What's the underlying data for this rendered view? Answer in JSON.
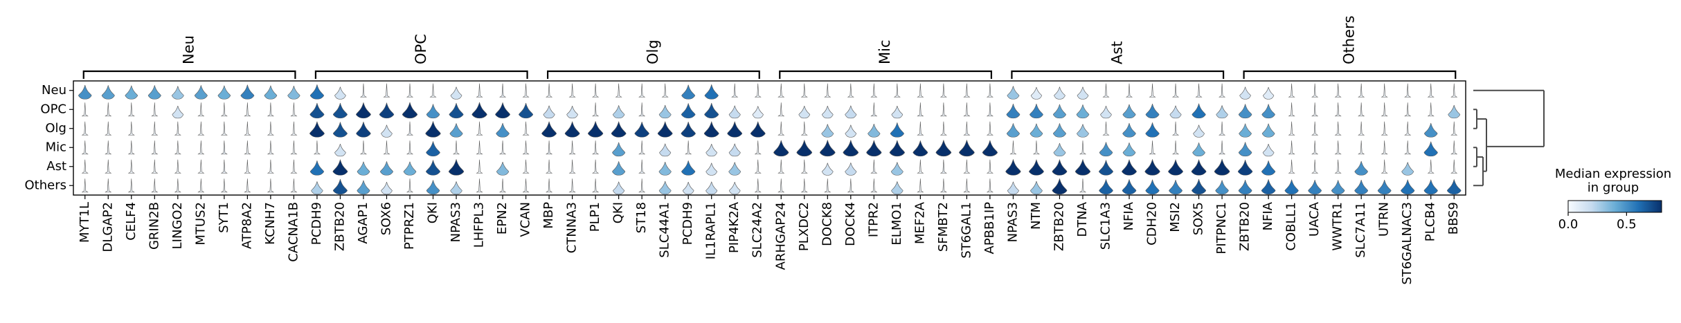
{
  "chart_data": {
    "type": "stacked-violin",
    "groups": [
      {
        "name": "Neu",
        "genes": [
          "MYT1L",
          "DLGAP2",
          "CELF4",
          "GRIN2B",
          "LINGO2",
          "MTUS2",
          "SYT1",
          "ATP8A2",
          "KCNH7",
          "CACNA1B"
        ]
      },
      {
        "name": "OPC",
        "genes": [
          "PCDH9",
          "ZBTB20",
          "AGAP1",
          "SOX6",
          "PTPRZ1",
          "QKI",
          "NPAS3",
          "LHFPL3",
          "EPN2",
          "VCAN"
        ]
      },
      {
        "name": "Olg",
        "genes": [
          "MBP",
          "CTNNA3",
          "PLP1",
          "QKI",
          "ST18",
          "SLC44A1",
          "PCDH9",
          "IL1RAPL1",
          "PIP4K2A",
          "SLC24A2"
        ]
      },
      {
        "name": "Mic",
        "genes": [
          "ARHGAP24",
          "PLXDC2",
          "DOCK8",
          "DOCK4",
          "ITPR2",
          "ELMO1",
          "MEF2A",
          "SFMBT2",
          "ST6GAL1",
          "APBB1IP"
        ]
      },
      {
        "name": "Ast",
        "genes": [
          "NPAS3",
          "NTM",
          "ZBTB20",
          "DTNA",
          "SLC1A3",
          "NFIA",
          "CDH20",
          "MSI2",
          "SOX5",
          "PITPNC1"
        ]
      },
      {
        "name": "Others",
        "genes": [
          "ZBTB20",
          "NFIA",
          "COBLL1",
          "UACA",
          "WWTR1",
          "SLC7A11",
          "UTRN",
          "ST6GALNAC3",
          "PLCB4",
          "BBS9"
        ]
      }
    ],
    "rows": [
      "Neu",
      "OPC",
      "Olg",
      "Mic",
      "Ast",
      "Others"
    ],
    "median_expression": [
      [
        0.5,
        0.45,
        0.4,
        0.45,
        0.3,
        0.45,
        0.4,
        0.55,
        0.4,
        0.35,
        0.6,
        0.15,
        0.05,
        0.05,
        0.02,
        0.02,
        0.15,
        0.05,
        0.05,
        0.02,
        0.02,
        0.02,
        0.02,
        0.02,
        0.02,
        0.02,
        0.55,
        0.6,
        0.05,
        0.02,
        0.02,
        0.02,
        0.02,
        0.02,
        0.02,
        0.02,
        0.02,
        0.02,
        0.02,
        0.02,
        0.3,
        0.1,
        0.15,
        0.15,
        0.02,
        0.05,
        0.02,
        0.02,
        0.05,
        0.02,
        0.15,
        0.1,
        0.02,
        0.02,
        0.02,
        0.02,
        0.02,
        0.02,
        0.02,
        0.02
      ],
      [
        0.02,
        0.02,
        0.02,
        0.02,
        0.15,
        0.02,
        0.02,
        0.02,
        0.02,
        0.02,
        0.7,
        0.7,
        0.8,
        0.75,
        0.85,
        0.5,
        0.7,
        0.85,
        0.8,
        0.7,
        0.2,
        0.15,
        0.02,
        0.25,
        0.05,
        0.3,
        0.65,
        0.7,
        0.2,
        0.1,
        0.02,
        0.15,
        0.15,
        0.2,
        0.05,
        0.15,
        0.05,
        0.02,
        0.02,
        0.05,
        0.55,
        0.55,
        0.45,
        0.4,
        0.15,
        0.45,
        0.55,
        0.2,
        0.6,
        0.25,
        0.5,
        0.5,
        0.02,
        0.02,
        0.02,
        0.02,
        0.02,
        0.02,
        0.02,
        0.3
      ],
      [
        0.02,
        0.02,
        0.02,
        0.02,
        0.02,
        0.02,
        0.02,
        0.02,
        0.02,
        0.02,
        0.8,
        0.7,
        0.75,
        0.15,
        0.05,
        0.85,
        0.45,
        0.02,
        0.5,
        0.02,
        0.8,
        0.8,
        0.85,
        0.8,
        0.75,
        0.8,
        0.75,
        0.8,
        0.8,
        0.8,
        0.02,
        0.02,
        0.3,
        0.15,
        0.35,
        0.6,
        0.05,
        0.02,
        0.05,
        0.02,
        0.45,
        0.4,
        0.45,
        0.3,
        0.02,
        0.5,
        0.6,
        0.05,
        0.15,
        0.05,
        0.4,
        0.4,
        0.02,
        0.02,
        0.02,
        0.02,
        0.02,
        0.02,
        0.5,
        0.02
      ],
      [
        0.02,
        0.02,
        0.02,
        0.02,
        0.02,
        0.02,
        0.05,
        0.02,
        0.02,
        0.02,
        0.02,
        0.15,
        0.02,
        0.02,
        0.02,
        0.65,
        0.02,
        0.02,
        0.02,
        0.02,
        0.05,
        0.02,
        0.02,
        0.45,
        0.02,
        0.2,
        0.02,
        0.15,
        0.2,
        0.02,
        0.85,
        0.9,
        0.9,
        0.9,
        0.85,
        0.85,
        0.8,
        0.9,
        0.9,
        0.85,
        0.02,
        0.02,
        0.3,
        0.02,
        0.5,
        0.4,
        0.05,
        0.02,
        0.4,
        0.05,
        0.5,
        0.15,
        0.02,
        0.02,
        0.02,
        0.02,
        0.02,
        0.02,
        0.6,
        0.02
      ],
      [
        0.02,
        0.02,
        0.02,
        0.02,
        0.02,
        0.02,
        0.05,
        0.02,
        0.02,
        0.02,
        0.6,
        0.8,
        0.4,
        0.45,
        0.4,
        0.7,
        0.85,
        0.02,
        0.35,
        0.02,
        0.02,
        0.02,
        0.02,
        0.45,
        0.05,
        0.35,
        0.6,
        0.15,
        0.3,
        0.02,
        0.02,
        0.02,
        0.15,
        0.2,
        0.05,
        0.3,
        0.02,
        0.05,
        0.02,
        0.02,
        0.85,
        0.8,
        0.8,
        0.85,
        0.7,
        0.8,
        0.85,
        0.8,
        0.8,
        0.9,
        0.75,
        0.6,
        0.02,
        0.02,
        0.02,
        0.5,
        0.02,
        0.3,
        0.02,
        0.02
      ],
      [
        0.02,
        0.02,
        0.02,
        0.02,
        0.02,
        0.02,
        0.02,
        0.02,
        0.02,
        0.02,
        0.25,
        0.7,
        0.45,
        0.15,
        0.02,
        0.5,
        0.25,
        0.02,
        0.02,
        0.02,
        0.02,
        0.02,
        0.02,
        0.2,
        0.02,
        0.3,
        0.15,
        0.2,
        0.15,
        0.02,
        0.02,
        0.02,
        0.02,
        0.02,
        0.02,
        0.25,
        0.02,
        0.02,
        0.02,
        0.02,
        0.2,
        0.3,
        0.8,
        0.02,
        0.65,
        0.65,
        0.6,
        0.55,
        0.7,
        0.5,
        0.55,
        0.65,
        0.6,
        0.55,
        0.5,
        0.55,
        0.55,
        0.6,
        0.6,
        0.65
      ]
    ],
    "colorbar": {
      "title": "Median expression\nin group",
      "min": 0.0,
      "max": 0.8,
      "ticks": [
        "0.0",
        "0.5"
      ],
      "colormap": [
        "#f7fbff",
        "#c6dbef",
        "#6baed6",
        "#2171b5",
        "#08306b"
      ]
    },
    "dendrogram": "row clustering: (Neu,(OPC,Olg)),((Mic,Ast),Others)"
  }
}
